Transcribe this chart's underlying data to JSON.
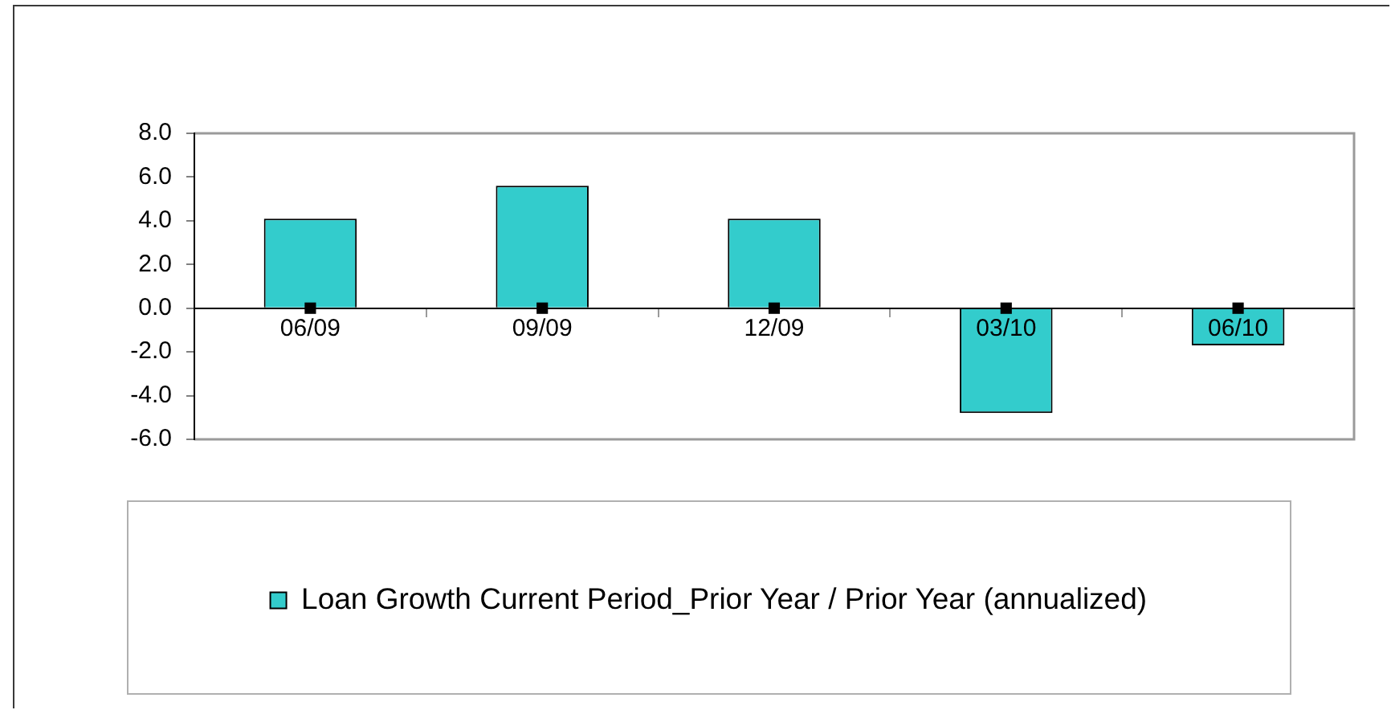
{
  "chart_data": {
    "type": "bar",
    "categories": [
      "06/09",
      "09/09",
      "12/09",
      "03/10",
      "06/10"
    ],
    "series": [
      {
        "name": "Loan Growth Current Period_Prior Year / Prior Year (annualized)",
        "color": "#33cccc",
        "values": [
          4.1,
          5.6,
          4.1,
          -4.8,
          -1.7
        ]
      },
      {
        "type": "scatter",
        "color": "#000000",
        "x": [
          "06/09",
          "09/09",
          "12/09",
          "03/10",
          "06/10"
        ],
        "values": [
          0,
          0,
          0,
          0,
          0
        ]
      }
    ],
    "ylim": [
      -6,
      8
    ],
    "yticks": [
      {
        "value": -6,
        "label": "-6.0"
      },
      {
        "value": -4,
        "label": "-4.0"
      },
      {
        "value": -2,
        "label": "-2.0"
      },
      {
        "value": 0,
        "label": "0.0"
      },
      {
        "value": 2,
        "label": "2.0"
      },
      {
        "value": 4,
        "label": "4.0"
      },
      {
        "value": 6,
        "label": "6.0"
      },
      {
        "value": 8,
        "label": "8.0"
      }
    ],
    "grid": false,
    "legend": "bottom",
    "marker": "square"
  }
}
